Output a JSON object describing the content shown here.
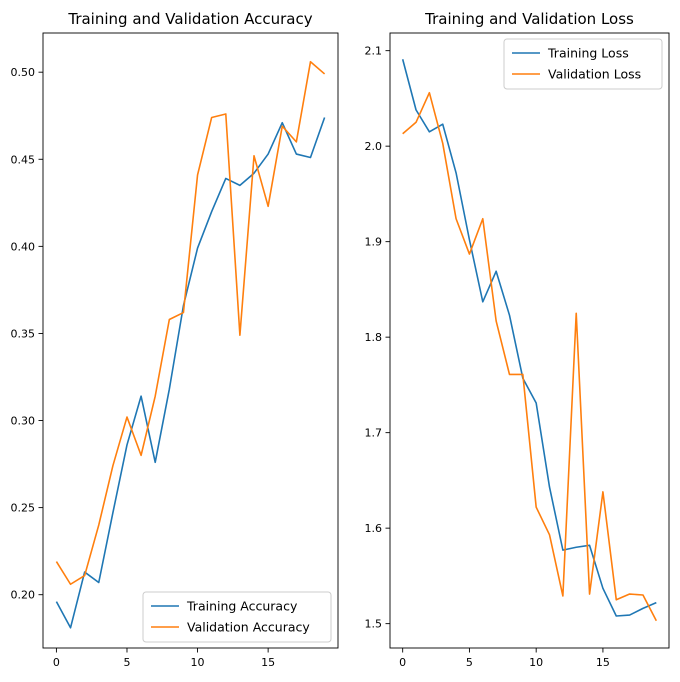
{
  "chart_data": [
    {
      "type": "line",
      "title": "Training and Validation Accuracy",
      "xlabel": "",
      "ylabel": "",
      "xlim": [
        -0.95,
        19.95
      ],
      "ylim": [
        0.1694,
        0.5225
      ],
      "xticks": [
        0,
        5,
        10,
        15
      ],
      "xtick_labels": [
        "0",
        "5",
        "10",
        "15"
      ],
      "yticks": [
        0.2,
        0.25,
        0.3,
        0.35,
        0.4,
        0.45,
        0.5
      ],
      "ytick_labels": [
        "0.20",
        "0.25",
        "0.30",
        "0.35",
        "0.40",
        "0.45",
        "0.50"
      ],
      "grid": false,
      "legend": "lower-right",
      "x": [
        0,
        1,
        2,
        3,
        4,
        5,
        6,
        7,
        8,
        9,
        10,
        11,
        12,
        13,
        14,
        15,
        16,
        17,
        18,
        19
      ],
      "series": [
        {
          "name": "Training Accuracy",
          "color": "#1f77b4",
          "values": [
            0.196,
            0.181,
            0.213,
            0.207,
            0.247,
            0.286,
            0.314,
            0.276,
            0.318,
            0.366,
            0.399,
            0.42,
            0.439,
            0.435,
            0.442,
            0.453,
            0.471,
            0.453,
            0.451,
            0.474
          ]
        },
        {
          "name": "Validation Accuracy",
          "color": "#ff7f0e",
          "values": [
            0.219,
            0.206,
            0.211,
            0.24,
            0.274,
            0.302,
            0.28,
            0.314,
            0.358,
            0.362,
            0.441,
            0.474,
            0.476,
            0.349,
            0.452,
            0.423,
            0.469,
            0.46,
            0.506,
            0.499
          ]
        }
      ]
    },
    {
      "type": "line",
      "title": "Training and Validation Loss",
      "xlabel": "",
      "ylabel": "",
      "xlim": [
        -0.95,
        19.95
      ],
      "ylim": [
        1.4745,
        2.1185
      ],
      "xticks": [
        0,
        5,
        10,
        15
      ],
      "xtick_labels": [
        "0",
        "5",
        "10",
        "15"
      ],
      "yticks": [
        1.5,
        1.6,
        1.7,
        1.8,
        1.9,
        2.0,
        2.1
      ],
      "ytick_labels": [
        "1.5",
        "1.6",
        "1.7",
        "1.8",
        "1.9",
        "2.0",
        "2.1"
      ],
      "grid": false,
      "legend": "upper-right",
      "x": [
        0,
        1,
        2,
        3,
        4,
        5,
        6,
        7,
        8,
        9,
        10,
        11,
        12,
        13,
        14,
        15,
        16,
        17,
        18,
        19
      ],
      "series": [
        {
          "name": "Training Loss",
          "color": "#1f77b4",
          "values": [
            2.091,
            2.038,
            2.015,
            2.023,
            1.972,
            1.902,
            1.837,
            1.869,
            1.823,
            1.757,
            1.731,
            1.643,
            1.577,
            1.58,
            1.582,
            1.537,
            1.508,
            1.509,
            1.516,
            1.522
          ]
        },
        {
          "name": "Validation Loss",
          "color": "#ff7f0e",
          "values": [
            2.013,
            2.025,
            2.056,
            2.003,
            1.924,
            1.887,
            1.924,
            1.817,
            1.761,
            1.761,
            1.622,
            1.593,
            1.529,
            1.825,
            1.531,
            1.638,
            1.525,
            1.531,
            1.53,
            1.503
          ]
        }
      ]
    }
  ]
}
